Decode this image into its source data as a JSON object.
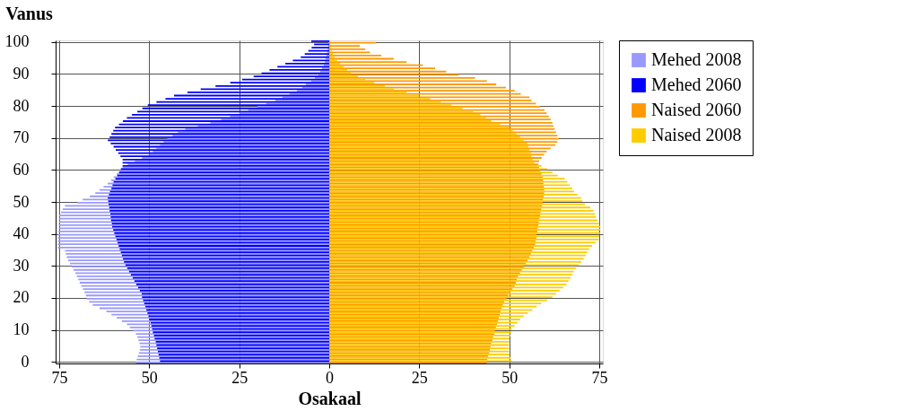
{
  "chart_data": {
    "type": "bar",
    "orientation": "horizontal",
    "xlabel": "Osakaal",
    "ylabel": "Vanus",
    "x": [
      0,
      1,
      2,
      3,
      4,
      5,
      6,
      7,
      8,
      9,
      10,
      11,
      12,
      13,
      14,
      15,
      16,
      17,
      18,
      19,
      20,
      21,
      22,
      23,
      24,
      25,
      26,
      27,
      28,
      29,
      30,
      31,
      32,
      33,
      34,
      35,
      36,
      37,
      38,
      39,
      40,
      41,
      42,
      43,
      44,
      45,
      46,
      47,
      48,
      49,
      50,
      51,
      52,
      53,
      54,
      55,
      56,
      57,
      58,
      59,
      60,
      61,
      62,
      63,
      64,
      65,
      66,
      67,
      68,
      69,
      70,
      71,
      72,
      73,
      74,
      75,
      76,
      77,
      78,
      79,
      80,
      81,
      82,
      83,
      84,
      85,
      86,
      87,
      88,
      89,
      90,
      91,
      92,
      93,
      94,
      95,
      96,
      97,
      98,
      99,
      100
    ],
    "series": [
      {
        "name": "Mehed 2008",
        "color": "#9999ff",
        "values": [
          -53.7,
          -53.5,
          -53.2,
          -52.9,
          -52.6,
          -52.5,
          -52.7,
          -53.0,
          -53.3,
          -53.7,
          -54.5,
          -55.4,
          -56.2,
          -57.6,
          -59.0,
          -60.5,
          -61.9,
          -63.8,
          -65.7,
          -66.7,
          -67.3,
          -67.6,
          -68.0,
          -68.4,
          -68.9,
          -69.3,
          -69.7,
          -70.1,
          -70.5,
          -71.0,
          -71.5,
          -72.0,
          -72.5,
          -72.9,
          -73.2,
          -73.4,
          -75.4,
          -75.4,
          -75.4,
          -75.4,
          -75.3,
          -75.2,
          -75.1,
          -75.1,
          -75.0,
          -75.0,
          -75.0,
          -74.5,
          -74.0,
          -73.4,
          -70.0,
          -68.5,
          -66.5,
          -65.0,
          -63.8,
          -62.7,
          -61.5,
          -60.6,
          -59.9,
          -59.0,
          -58.2,
          -57.4,
          -56.0,
          -54.0,
          -52.0,
          -50.0,
          -49.0,
          -48.0,
          -47.0,
          -46.0,
          -45.0,
          -43.5,
          -42.0,
          -40.0,
          -36.5,
          -33.0,
          -30.0,
          -27.5,
          -25.0,
          -22.5,
          -20.0,
          -17.5,
          -15.0,
          -13.0,
          -11.0,
          -9.0,
          -7.5,
          -6.5,
          -5.0,
          -4.0,
          -3.0,
          -2.5,
          -2.0,
          -1.5,
          -1.2,
          -1.0,
          -0.8,
          -0.6,
          -0.4,
          -0.3,
          -0.2
        ]
      },
      {
        "name": "Mehed 2060",
        "color": "#0000ff",
        "values": [
          -47.0,
          -47.2,
          -47.4,
          -47.6,
          -47.8,
          -48.0,
          -48.2,
          -48.5,
          -48.7,
          -49.0,
          -49.2,
          -49.4,
          -49.6,
          -49.9,
          -50.2,
          -50.5,
          -50.8,
          -51.1,
          -51.4,
          -51.7,
          -52.0,
          -52.1,
          -52.6,
          -53.1,
          -53.6,
          -54.1,
          -54.6,
          -55.1,
          -55.6,
          -56.1,
          -56.6,
          -57.0,
          -57.3,
          -57.6,
          -57.9,
          -58.2,
          -58.5,
          -58.8,
          -59.1,
          -59.4,
          -59.7,
          -60.0,
          -60.3,
          -60.4,
          -60.6,
          -60.7,
          -60.8,
          -61.0,
          -61.1,
          -61.3,
          -61.4,
          -61.5,
          -61.2,
          -60.9,
          -60.5,
          -60.2,
          -59.9,
          -59.4,
          -58.9,
          -58.4,
          -57.9,
          -57.4,
          -57.4,
          -57.4,
          -58.0,
          -58.6,
          -59.3,
          -59.9,
          -60.7,
          -61.5,
          -61.0,
          -60.5,
          -60.0,
          -59.5,
          -58.4,
          -57.3,
          -56.2,
          -54.8,
          -53.3,
          -51.9,
          -50.4,
          -48.0,
          -45.5,
          -43.1,
          -39.4,
          -35.7,
          -31.6,
          -27.5,
          -24.2,
          -21.0,
          -18.8,
          -16.6,
          -14.4,
          -12.2,
          -10.1,
          -7.9,
          -6.8,
          -5.8,
          -4.9,
          -4.2,
          -5.0
        ]
      },
      {
        "name": "Naised 2060",
        "color": "#ff9900",
        "values": [
          43.7,
          43.9,
          44.1,
          44.4,
          44.6,
          44.8,
          45.0,
          45.3,
          45.5,
          45.8,
          46.0,
          46.3,
          46.6,
          46.8,
          47.1,
          47.4,
          47.6,
          47.9,
          48.2,
          48.6,
          49.2,
          49.8,
          50.3,
          50.9,
          51.5,
          51.8,
          52.1,
          52.4,
          53.0,
          53.5,
          54.1,
          54.6,
          55.1,
          55.6,
          56.0,
          56.4,
          56.8,
          57.2,
          57.3,
          57.5,
          57.6,
          57.8,
          57.9,
          58.1,
          58.2,
          58.4,
          58.6,
          58.7,
          58.9,
          59.1,
          59.3,
          59.4,
          59.6,
          59.7,
          59.7,
          59.6,
          59.5,
          59.4,
          59.3,
          59.0,
          58.6,
          58.3,
          58.1,
          58.3,
          59.0,
          59.7,
          60.4,
          61.5,
          62.8,
          63.4,
          63.8,
          63.4,
          63.0,
          62.6,
          62.3,
          62.0,
          61.5,
          61.0,
          60.4,
          59.8,
          58.6,
          57.4,
          56.2,
          55.6,
          53.2,
          51.5,
          49.1,
          46.4,
          43.8,
          40.5,
          36.0,
          32.5,
          29.4,
          26.0,
          21.5,
          17.9,
          14.5,
          11.3,
          10.0,
          8.5,
          13.0
        ]
      },
      {
        "name": "Naised 2008",
        "color": "#ffcc00",
        "values": [
          50.7,
          50.4,
          50.1,
          49.9,
          49.9,
          49.9,
          50.0,
          50.1,
          50.3,
          50.5,
          50.7,
          51.5,
          52.3,
          53.0,
          54.0,
          55.2,
          56.4,
          57.6,
          58.9,
          60.5,
          62.0,
          63.0,
          64.0,
          65.0,
          65.9,
          66.5,
          67.1,
          67.5,
          67.9,
          68.6,
          69.3,
          70.0,
          70.7,
          71.3,
          71.7,
          72.2,
          73.0,
          74.0,
          74.9,
          75.0,
          75.2,
          75.3,
          75.3,
          74.9,
          74.5,
          74.1,
          73.8,
          73.4,
          72.5,
          71.0,
          70.3,
          70.0,
          69.0,
          68.0,
          67.5,
          66.8,
          66.1,
          65.4,
          63.5,
          62.0,
          60.5,
          59.0,
          57.0,
          56.5,
          56.2,
          56.0,
          55.6,
          55.3,
          55.0,
          54.0,
          53.0,
          52.0,
          51.0,
          50.0,
          47.5,
          45.0,
          43.5,
          42.0,
          40.0,
          37.0,
          34.0,
          31.0,
          28.0,
          25.0,
          21.5,
          18.0,
          15.5,
          12.5,
          10.0,
          8.0,
          6.0,
          5.0,
          4.0,
          3.0,
          2.2,
          1.5,
          1.0,
          0.7,
          0.5,
          0.4,
          0.3
        ]
      }
    ],
    "xlim": [
      -76,
      76
    ],
    "xticks": [
      {
        "value": -75,
        "label": "75"
      },
      {
        "value": -50,
        "label": "50"
      },
      {
        "value": -25,
        "label": "25"
      },
      0,
      25,
      50,
      75
    ],
    "ylim": [
      -0.5,
      100.5
    ],
    "yticks": [
      0,
      10,
      20,
      30,
      40,
      50,
      60,
      70,
      80,
      90,
      100
    ],
    "grid": true,
    "legend": "right"
  }
}
